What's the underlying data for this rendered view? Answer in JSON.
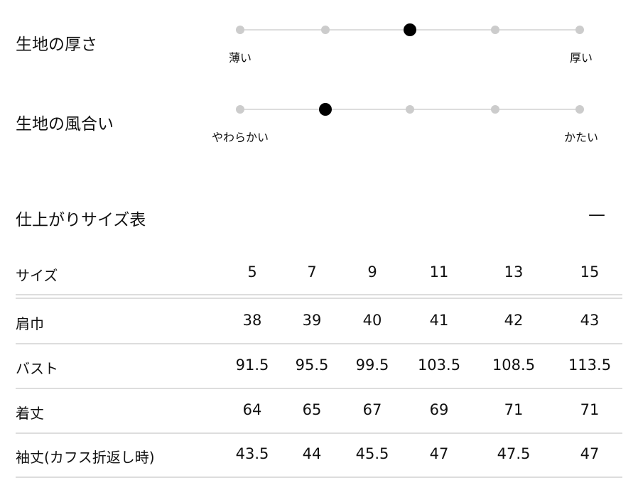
{
  "sliders": [
    {
      "title": "生地の厚さ",
      "min_label": "薄い",
      "max_label": "厚い",
      "steps": 5,
      "selected": 3
    },
    {
      "title": "生地の風合い",
      "min_label": "やわらかい",
      "max_label": "かたい",
      "steps": 5,
      "selected": 2
    }
  ],
  "size_table": {
    "title": "仕上がりサイズ表",
    "collapse_icon": "minus-icon",
    "collapse_label": "—",
    "header": {
      "label": "サイズ",
      "values": [
        "5",
        "7",
        "9",
        "11",
        "13",
        "15"
      ]
    },
    "rows": [
      {
        "label": "肩巾",
        "values": [
          "38",
          "39",
          "40",
          "41",
          "42",
          "43"
        ]
      },
      {
        "label": "バスト",
        "values": [
          "91.5",
          "95.5",
          "99.5",
          "103.5",
          "108.5",
          "113.5"
        ]
      },
      {
        "label": "着丈",
        "values": [
          "64",
          "65",
          "67",
          "69",
          "71",
          "71"
        ]
      },
      {
        "label": "袖丈(カフス折返し時)",
        "values": [
          "43.5",
          "44",
          "45.5",
          "47",
          "47.5",
          "47"
        ]
      }
    ]
  }
}
